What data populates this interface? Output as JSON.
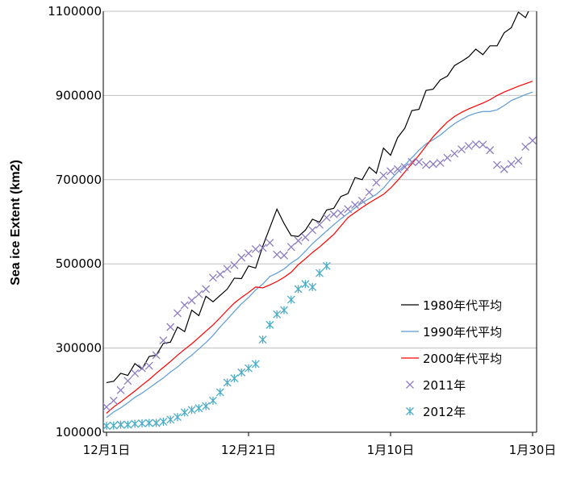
{
  "chart_data": {
    "type": "line",
    "title": "",
    "xlabel": "",
    "ylabel": "Sea ice Extent (km2)",
    "ylim": [
      100000,
      1100000
    ],
    "yticks": [
      "100000",
      "300000",
      "500000",
      "700000",
      "900000",
      "1100000"
    ],
    "xticks": [
      {
        "day": 1,
        "label": "12月1日"
      },
      {
        "day": 21,
        "label": "12月21日"
      },
      {
        "day": 41,
        "label": "1月10日"
      },
      {
        "day": 61,
        "label": "1月30日"
      }
    ],
    "x_range": [
      1,
      61
    ],
    "x_note": "x = day index starting Dec 1 (day 1) through Jan 31",
    "grid": "horizontal",
    "legend": "bottom-right",
    "series": [
      {
        "name": "1980年代平均",
        "style": "line",
        "color": "#000000",
        "values": [
          218000,
          221000,
          240000,
          235000,
          263000,
          250000,
          280000,
          283000,
          311000,
          314000,
          350000,
          339000,
          390000,
          377000,
          423000,
          410000,
          425000,
          440000,
          466000,
          465000,
          495000,
          490000,
          542000,
          586000,
          630000,
          596000,
          567000,
          565000,
          580000,
          606000,
          599000,
          628000,
          632000,
          660000,
          667000,
          705000,
          700000,
          730000,
          715000,
          775000,
          758000,
          800000,
          822000,
          864000,
          867000,
          912000,
          915000,
          937000,
          946000,
          971000,
          981000,
          992000,
          1010000,
          997000,
          1018000,
          1018000,
          1049000,
          1061000,
          1098000,
          1085000,
          1120000
        ]
      },
      {
        "name": "1990年代平均",
        "style": "line",
        "color": "#5b9bd5",
        "values": [
          135000,
          148000,
          158000,
          170000,
          183000,
          193000,
          205000,
          217000,
          229000,
          243000,
          255000,
          270000,
          283000,
          298000,
          313000,
          330000,
          350000,
          368000,
          387000,
          405000,
          420000,
          438000,
          452000,
          470000,
          478000,
          488000,
          502000,
          513000,
          530000,
          548000,
          563000,
          578000,
          593000,
          607000,
          620000,
          633000,
          645000,
          655000,
          665000,
          680000,
          700000,
          718000,
          735000,
          752000,
          770000,
          785000,
          795000,
          806000,
          820000,
          833000,
          843000,
          852000,
          858000,
          862000,
          862000,
          866000,
          876000,
          888000,
          895000,
          902000,
          908000
        ]
      },
      {
        "name": "2000年代平均",
        "style": "line",
        "color": "#ff0000",
        "values": [
          145000,
          160000,
          172000,
          185000,
          198000,
          212000,
          225000,
          240000,
          254000,
          268000,
          283000,
          297000,
          310000,
          325000,
          340000,
          355000,
          372000,
          390000,
          407000,
          420000,
          432000,
          445000,
          443000,
          450000,
          458000,
          468000,
          480000,
          498000,
          512000,
          527000,
          540000,
          555000,
          570000,
          590000,
          610000,
          622000,
          634000,
          645000,
          655000,
          665000,
          680000,
          698000,
          718000,
          738000,
          758000,
          780000,
          802000,
          820000,
          837000,
          850000,
          860000,
          868000,
          875000,
          882000,
          890000,
          900000,
          908000,
          915000,
          922000,
          928000,
          934000
        ]
      },
      {
        "name": "2011年",
        "style": "marker-x",
        "color": "#8e7cc3",
        "values": [
          160000,
          175000,
          200000,
          222000,
          240000,
          252000,
          258000,
          283000,
          318000,
          350000,
          383000,
          402000,
          413000,
          428000,
          440000,
          467000,
          475000,
          488000,
          497000,
          515000,
          525000,
          535000,
          538000,
          550000,
          522000,
          520000,
          540000,
          555000,
          563000,
          580000,
          593000,
          610000,
          618000,
          621000,
          630000,
          640000,
          650000,
          670000,
          693000,
          710000,
          720000,
          725000,
          730000,
          742000,
          742000,
          735000,
          737000,
          740000,
          752000,
          762000,
          772000,
          780000,
          784000,
          783000,
          770000,
          735000,
          725000,
          737000,
          745000,
          778000,
          793000
        ]
      },
      {
        "name": "2012年",
        "style": "marker-star",
        "color": "#4bacc6",
        "values": [
          115000,
          116000,
          118000,
          118000,
          120000,
          121000,
          122000,
          122000,
          125000,
          130000,
          136000,
          147000,
          153000,
          157000,
          162000,
          175000,
          195000,
          218000,
          228000,
          242000,
          252000,
          262000,
          320000,
          355000,
          380000,
          390000,
          415000,
          440000,
          452000,
          445000,
          478000,
          495000
        ]
      }
    ]
  }
}
